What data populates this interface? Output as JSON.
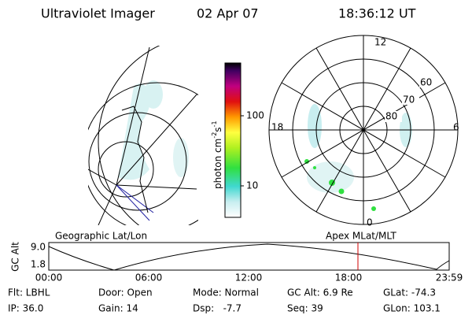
{
  "header": {
    "instrument": "Ultraviolet Imager",
    "date": "02 Apr 07",
    "time": "18:36:12 UT"
  },
  "colorbar": {
    "label": "photon cm",
    "exp1": "-2",
    "unit2": "s",
    "exp2": "-1",
    "ticks": [
      "100",
      "10"
    ]
  },
  "polar_plot": {
    "mlt_labels": [
      "12",
      "18",
      "6",
      "0"
    ],
    "lat_labels": [
      "60",
      "70",
      "80"
    ]
  },
  "altitude_panel": {
    "left_title": "Geographic Lat/Lon",
    "right_title": "Apex MLat/MLT",
    "axis_label": "GC Alt",
    "y_labels": [
      "9.0",
      "1.8"
    ],
    "time_labels": [
      "00:00",
      "06:00",
      "12:00",
      "18:00",
      "23:59"
    ]
  },
  "footer": {
    "rows": [
      [
        "Flt: LBHL",
        "Door: Open",
        "Mode: Normal",
        "GC Alt: 6.9 Re",
        "GLat: -74.3"
      ],
      [
        "IP: 36.0",
        "Gain: 14",
        "Dsp:   -7.7",
        "Seq: 39",
        "GLon: 103.1"
      ]
    ]
  }
}
